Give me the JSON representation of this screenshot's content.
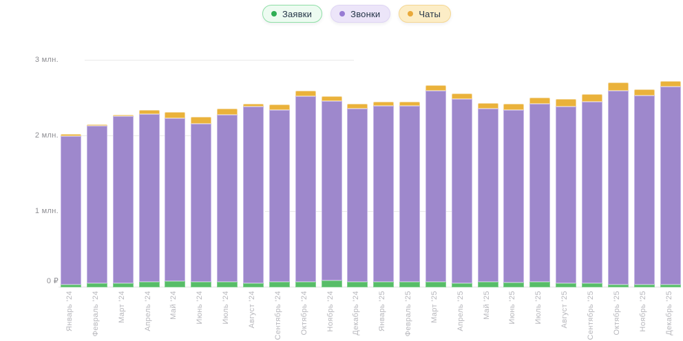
{
  "legend": {
    "items": [
      {
        "label": "Заявки",
        "dot_color": "#2fae54",
        "bg": "#edfbf1",
        "border": "#8edfa6"
      },
      {
        "label": "Звонки",
        "dot_color": "#977bd3",
        "bg": "#ece5f9",
        "border": "#ded4f4"
      },
      {
        "label": "Чаты",
        "dot_color": "#e9a93a",
        "bg": "#fcedc6",
        "border": "#f4d691"
      }
    ]
  },
  "y_axis": {
    "tick_labels": [
      "3 млн.",
      "2 млн.",
      "1 млн.",
      "0 ₽"
    ]
  },
  "chart_data": {
    "type": "bar",
    "stacked": true,
    "units": "млн ₽",
    "title": "",
    "xlabel": "",
    "ylabel": "₽",
    "ylim": [
      0,
      3
    ],
    "yticks": [
      0,
      1,
      2,
      3
    ],
    "grid": "horizontal",
    "legend_position": "top",
    "categories": [
      "Январь '24",
      "Февраль '24",
      "Март '24",
      "Апрель '24",
      "Май '24",
      "Июнь '24",
      "Июль '24",
      "Август '24",
      "Сентябрь '24",
      "Октябрь '24",
      "Ноябрь '24",
      "Декабрь '24",
      "Январь '25",
      "Февраль '25",
      "Март '25",
      "Апрель '25",
      "Май '25",
      "Июнь '25",
      "Июль '25",
      "Август '25",
      "Сентябрь '25",
      "Октябрь '25",
      "Ноябрь '25",
      "Декабрь '25"
    ],
    "series": [
      {
        "name": "Заявки",
        "color": "#57bd68",
        "values": [
          0.04,
          0.05,
          0.05,
          0.07,
          0.08,
          0.07,
          0.07,
          0.05,
          0.07,
          0.07,
          0.09,
          0.07,
          0.07,
          0.07,
          0.07,
          0.05,
          0.07,
          0.06,
          0.07,
          0.05,
          0.05,
          0.04,
          0.04,
          0.04
        ]
      },
      {
        "name": "Звонки",
        "color": "#9e88cc",
        "values": [
          1.96,
          2.08,
          2.21,
          2.22,
          2.15,
          2.09,
          2.21,
          2.34,
          2.27,
          2.45,
          2.37,
          2.29,
          2.33,
          2.33,
          2.53,
          2.44,
          2.29,
          2.28,
          2.35,
          2.34,
          2.4,
          2.56,
          2.5,
          2.62
        ]
      },
      {
        "name": "Чаты",
        "color": "#eab23b",
        "values": [
          0.03,
          0.02,
          0.02,
          0.05,
          0.08,
          0.09,
          0.08,
          0.04,
          0.07,
          0.07,
          0.06,
          0.06,
          0.05,
          0.05,
          0.07,
          0.07,
          0.07,
          0.08,
          0.08,
          0.1,
          0.1,
          0.11,
          0.08,
          0.07
        ]
      }
    ]
  }
}
